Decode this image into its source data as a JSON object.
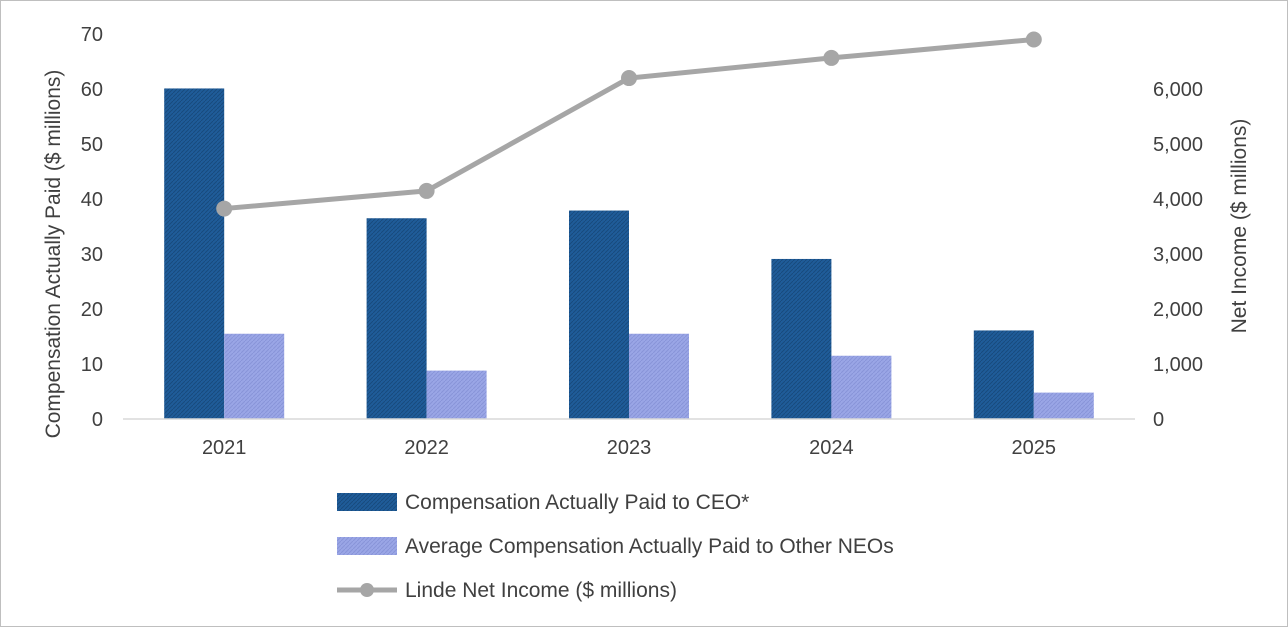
{
  "chart_data": {
    "type": "bar",
    "title": "",
    "categories": [
      "2021",
      "2022",
      "2023",
      "2024",
      "2025"
    ],
    "ylabel": "Compensation Actually Paid ($ millions)",
    "y2label": "Net Income ($ millions)",
    "ylim": [
      0,
      70
    ],
    "yticks": [
      0,
      10,
      20,
      30,
      40,
      50,
      60,
      70
    ],
    "y2lim": [
      0,
      7000
    ],
    "y2ticks": [
      0,
      1000,
      2000,
      3000,
      4000,
      5000,
      6000
    ],
    "y2tick_labels": [
      "0",
      "1,000",
      "2,000",
      "3,000",
      "4,000",
      "5,000",
      "6,000"
    ],
    "grid": false,
    "legend_position": "bottom",
    "series": [
      {
        "name": "Compensation Actually Paid to CEO*",
        "type": "bar",
        "axis": "left",
        "color": "#1f5c99",
        "values": [
          60.1,
          36.5,
          37.9,
          29.1,
          16.1
        ]
      },
      {
        "name": "Average Compensation Actually Paid to Other NEOs",
        "type": "bar",
        "axis": "left",
        "color": "#9aa6e6",
        "values": [
          15.5,
          8.8,
          15.5,
          11.5,
          4.8
        ]
      },
      {
        "name": "Linde Net Income ($ millions)",
        "type": "line",
        "axis": "right",
        "color": "#a6a6a6",
        "values": [
          3826,
          4147,
          6199,
          6565,
          6900
        ]
      }
    ]
  }
}
